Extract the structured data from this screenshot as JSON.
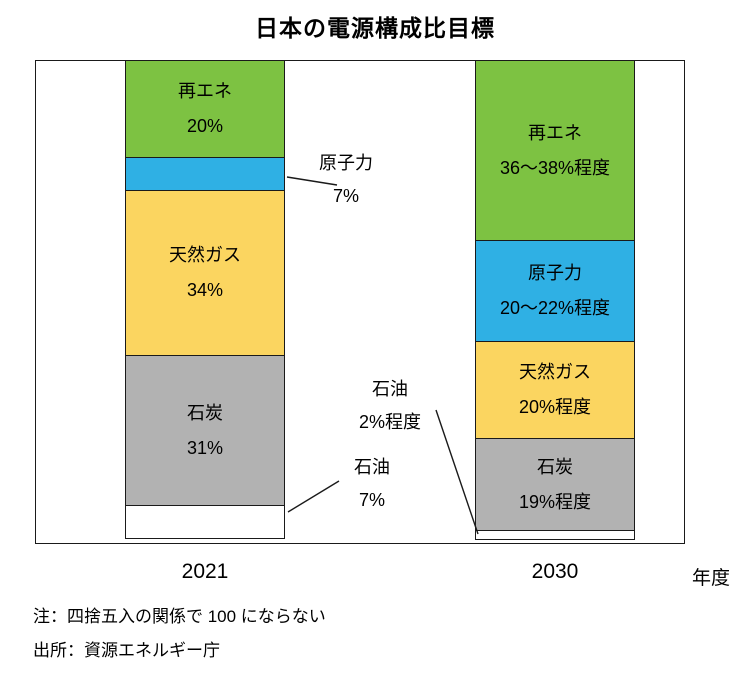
{
  "title": "日本の電源構成比目標",
  "chart_data": {
    "type": "bar",
    "subtype": "stacked-column",
    "title": "日本の電源構成比目標",
    "categories": [
      "2021",
      "2030"
    ],
    "axis_unit": "年度",
    "ylim": [
      0,
      100
    ],
    "value_unit": "%",
    "bars": [
      {
        "category": "2021",
        "segments": [
          {
            "name": "再エネ",
            "value": 20,
            "label_line1": "再エネ",
            "label_line2": "20%",
            "color": "#7dc242",
            "label_placement": "inside"
          },
          {
            "name": "原子力",
            "value": 7,
            "label_line1": "原子力",
            "label_line2": "7%",
            "color": "#2fb0e4",
            "label_placement": "callout"
          },
          {
            "name": "天然ガス",
            "value": 34,
            "label_line1": "天然ガス",
            "label_line2": "34%",
            "color": "#fbd560",
            "label_placement": "inside"
          },
          {
            "name": "石炭",
            "value": 31,
            "label_line1": "石炭",
            "label_line2": "31%",
            "color": "#b2b2b2",
            "label_placement": "inside"
          },
          {
            "name": "石油",
            "value": 7,
            "label_line1": "石油",
            "label_line2": "7%",
            "color": "#ffffff",
            "label_placement": "callout"
          }
        ]
      },
      {
        "category": "2030",
        "segments": [
          {
            "name": "再エネ",
            "value": 37,
            "label_line1": "再エネ",
            "label_line2": "36〜38%程度",
            "color": "#7dc242",
            "label_placement": "inside"
          },
          {
            "name": "原子力",
            "value": 21,
            "label_line1": "原子力",
            "label_line2": "20〜22%程度",
            "color": "#2fb0e4",
            "label_placement": "inside"
          },
          {
            "name": "天然ガス",
            "value": 20,
            "label_line1": "天然ガス",
            "label_line2": "20%程度",
            "color": "#fbd560",
            "label_placement": "inside"
          },
          {
            "name": "石炭",
            "value": 19,
            "label_line1": "石炭",
            "label_line2": "19%程度",
            "color": "#b2b2b2",
            "label_placement": "inside"
          },
          {
            "name": "石油",
            "value": 2,
            "label_line1": "石油",
            "label_line2": "2%程度",
            "color": "#ffffff",
            "label_placement": "callout"
          }
        ]
      }
    ],
    "notes": [
      "注：四捨五入の関係で 100 にならない",
      "出所：資源エネルギー庁"
    ]
  }
}
